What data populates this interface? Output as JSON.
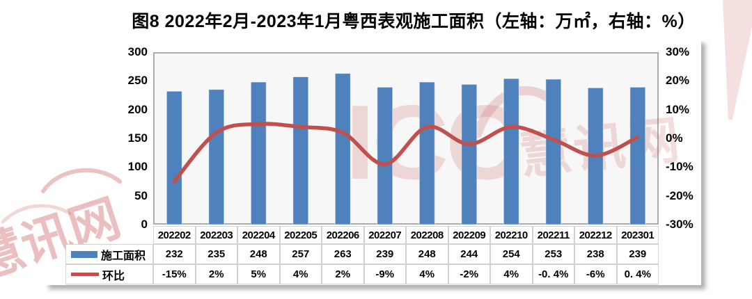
{
  "title": "图8 2022年2月-2023年1月粤西表观施工面积（左轴：万㎡，右轴：%）",
  "watermarks": {
    "center_icc": "ICC",
    "center_name": "慧讯网",
    "corner_name": "慧讯网",
    "pink": "#c65454"
  },
  "chart_data": {
    "type": "bar+line",
    "title": "图8 2022年2月-2023年1月粤西表观施工面积（左轴：万㎡，右轴：%）",
    "grid": false,
    "legend_position": "table-left",
    "categories": [
      "202202",
      "202203",
      "202204",
      "202205",
      "202206",
      "202207",
      "202208",
      "202209",
      "202210",
      "202211",
      "202212",
      "202301"
    ],
    "series": [
      {
        "name": "施工面积",
        "type": "bar",
        "axis": "left",
        "color": "#4f81bd",
        "values": [
          232,
          235,
          248,
          257,
          263,
          239,
          248,
          244,
          254,
          253,
          238,
          239
        ],
        "labels": [
          "232",
          "235",
          "248",
          "257",
          "263",
          "239",
          "248",
          "244",
          "254",
          "253",
          "238",
          "239"
        ]
      },
      {
        "name": "环比",
        "type": "line",
        "axis": "right",
        "color": "#c0504d",
        "values": [
          -15,
          2,
          5,
          4,
          2,
          -9,
          4,
          -2,
          4,
          -0.4,
          -6,
          0.4
        ],
        "labels": [
          "-15%",
          "2%",
          "5%",
          "4%",
          "2%",
          "-9%",
          "4%",
          "-2%",
          "4%",
          "-0. 4%",
          "-6%",
          "0. 4%"
        ]
      }
    ],
    "left_axis": {
      "unit": "万㎡",
      "min": 0,
      "max": 300,
      "ticks": [
        "300",
        "250",
        "200",
        "150",
        "100",
        "50",
        "0"
      ]
    },
    "right_axis": {
      "unit": "%",
      "min": -30,
      "max": 30,
      "ticks": [
        "30%",
        "20%",
        "10%",
        "0%",
        "-10%",
        "-20%",
        "-30%"
      ]
    }
  }
}
